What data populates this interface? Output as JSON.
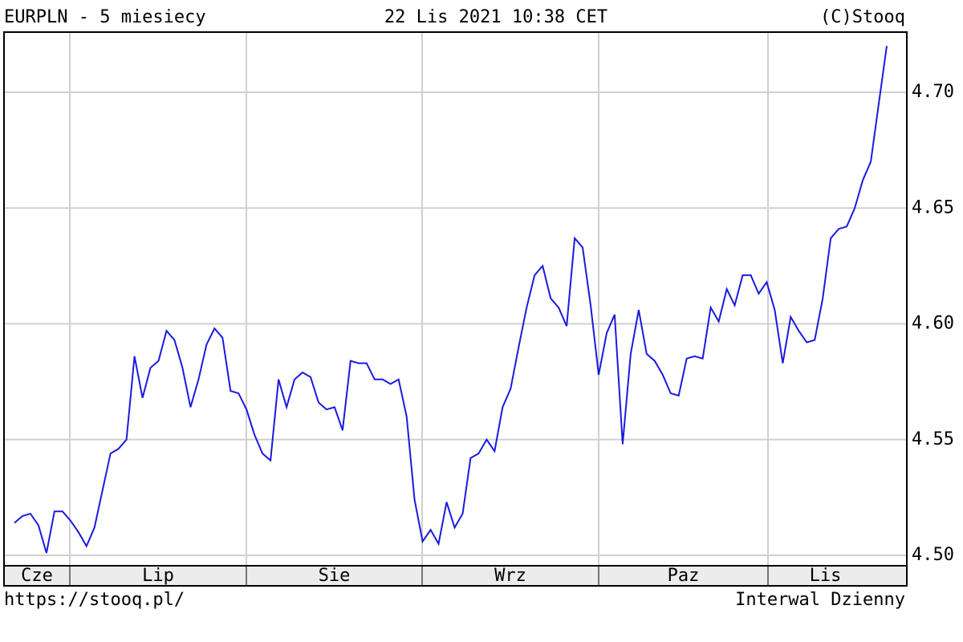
{
  "chart_data": {
    "type": "line",
    "title": "EURPLN - 5 miesiecy",
    "subtitle": "22 Lis 2021 10:38 CET",
    "credit": "(C)Stooq",
    "source": "https://stooq.pl/",
    "interval": "Interwal Dzienny",
    "months": [
      "Cze",
      "Lip",
      "Sie",
      "Wrz",
      "Paz",
      "Lis"
    ],
    "color": "#1a1ae0",
    "grid": true,
    "ylim": [
      4.4955,
      4.726
    ],
    "yticks": [
      {
        "value": 4.5,
        "label": "4.50"
      },
      {
        "value": 4.55,
        "label": "4.55"
      },
      {
        "value": 4.6,
        "label": "4.60"
      },
      {
        "value": 4.65,
        "label": "4.65"
      },
      {
        "value": 4.7,
        "label": "4.70"
      }
    ],
    "values": [
      4.514,
      4.517,
      4.518,
      4.513,
      4.501,
      4.519,
      4.519,
      4.515,
      4.51,
      4.504,
      4.512,
      4.528,
      4.544,
      4.546,
      4.55,
      4.586,
      4.568,
      4.581,
      4.584,
      4.597,
      4.593,
      4.581,
      4.564,
      4.576,
      4.591,
      4.598,
      4.594,
      4.571,
      4.57,
      4.563,
      4.552,
      4.544,
      4.541,
      4.576,
      4.564,
      4.576,
      4.579,
      4.577,
      4.566,
      4.563,
      4.564,
      4.554,
      4.584,
      4.583,
      4.583,
      4.576,
      4.576,
      4.574,
      4.576,
      4.56,
      4.524,
      4.506,
      4.511,
      4.505,
      4.523,
      4.512,
      4.518,
      4.542,
      4.544,
      4.55,
      4.545,
      4.564,
      4.572,
      4.59,
      4.607,
      4.621,
      4.625,
      4.611,
      4.607,
      4.599,
      4.637,
      4.633,
      4.608,
      4.578,
      4.596,
      4.604,
      4.548,
      4.587,
      4.606,
      4.587,
      4.584,
      4.578,
      4.57,
      4.569,
      4.585,
      4.586,
      4.585,
      4.607,
      4.601,
      4.615,
      4.608,
      4.621,
      4.621,
      4.613,
      4.618,
      4.606,
      4.583,
      4.603,
      4.597,
      4.592,
      4.593,
      4.611,
      4.637,
      4.641,
      4.642,
      4.65,
      4.662,
      4.67,
      4.695,
      4.72
    ]
  }
}
